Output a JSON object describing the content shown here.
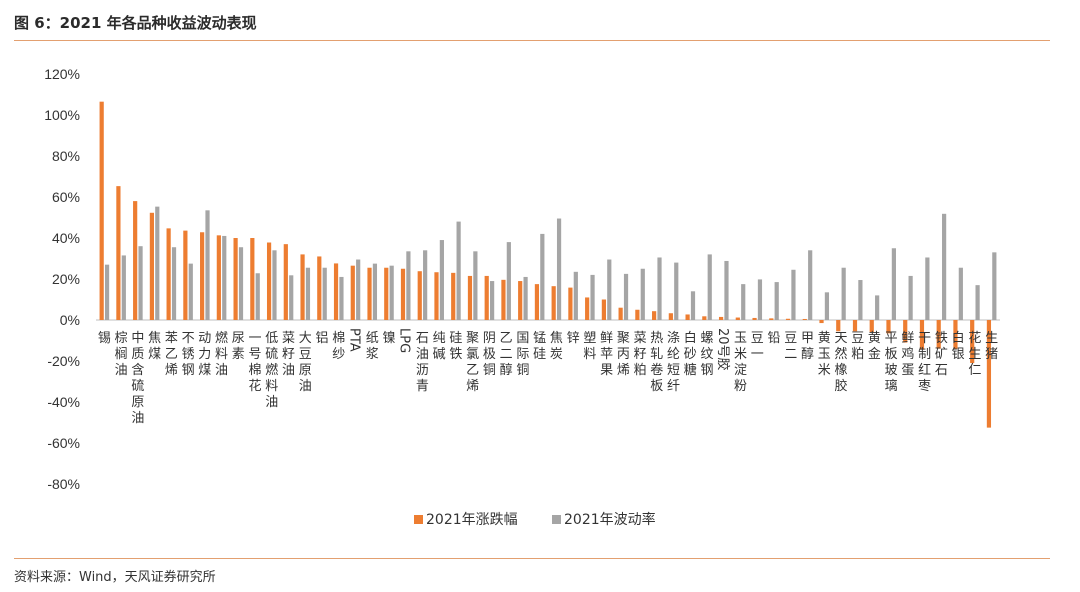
{
  "figure": {
    "title": "图 6：2021 年各品种收益波动表现",
    "source": "资料来源：Wind，天风证券研究所"
  },
  "colors": {
    "change": "#ED7D31",
    "vol": "#A5A5A5",
    "rule": "#E3A070",
    "axis": "#BFBFBF",
    "text": "#333333"
  },
  "chart_data": {
    "type": "bar",
    "title": "",
    "xlabel": "",
    "ylabel": "",
    "ylim": [
      -80,
      120
    ],
    "yticks": [
      "120%",
      "100%",
      "80%",
      "60%",
      "40%",
      "20%",
      "0%",
      "-20%",
      "-40%",
      "-60%",
      "-80%"
    ],
    "grid": false,
    "legend": "bottom",
    "categories": [
      "锡",
      "棕榈油",
      "中质含硫原油",
      "焦煤",
      "苯乙烯",
      "不锈钢",
      "动力煤",
      "燃料油",
      "尿素",
      "一号棉花",
      "低硫燃料油",
      "菜籽油",
      "大豆原油",
      "铝",
      "棉纱",
      "PTA",
      "纸浆",
      "镍",
      "LPG",
      "石油沥青",
      "纯碱",
      "硅铁",
      "聚氯乙烯",
      "阴极铜",
      "乙二醇",
      "国际铜",
      "锰硅",
      "焦炭",
      "锌",
      "塑料",
      "鲜苹果",
      "聚丙烯",
      "菜籽粕",
      "热轧卷板",
      "涤纶短纤",
      "白砂糖",
      "螺纹钢",
      "20号胶",
      "玉米淀粉",
      "豆一",
      "铅",
      "豆二",
      "甲醇",
      "黄玉米",
      "天然橡胶",
      "豆粕",
      "黄金",
      "平板玻璃",
      "鲜鸡蛋",
      "干制红枣",
      "铁矿石",
      "白银",
      "花生仁",
      "生猪"
    ],
    "series": [
      {
        "name": "2021年涨跌幅",
        "values": [
          106.5,
          65.3,
          58.0,
          52.3,
          44.7,
          43.6,
          42.8,
          41.3,
          40.0,
          40.0,
          37.8,
          37.0,
          32.0,
          31.0,
          27.6,
          26.5,
          25.5,
          25.5,
          25.0,
          23.8,
          23.3,
          23.0,
          21.5,
          21.5,
          19.6,
          19.0,
          17.5,
          16.5,
          15.8,
          11.0,
          10.0,
          6.0,
          5.0,
          4.3,
          3.3,
          2.7,
          1.8,
          1.5,
          1.2,
          1.0,
          0.8,
          0.6,
          0.5,
          -1.5,
          -5.5,
          -5.5,
          -6.0,
          -6.5,
          -11.0,
          -14.5,
          -14.0,
          -14.0,
          -21.0,
          -52.5
        ]
      },
      {
        "name": "2021年波动率",
        "values": [
          27.0,
          31.5,
          36.0,
          55.3,
          35.5,
          27.5,
          53.5,
          41.0,
          35.5,
          22.8,
          34.0,
          21.8,
          25.5,
          25.5,
          21.0,
          29.5,
          27.5,
          26.5,
          33.5,
          34.0,
          39.0,
          48.0,
          33.5,
          19.0,
          38.0,
          21.0,
          42.0,
          49.5,
          23.5,
          22.0,
          29.5,
          22.5,
          25.0,
          30.5,
          28.0,
          14.0,
          32.0,
          28.8,
          17.5,
          19.8,
          18.5,
          24.5,
          34.0,
          13.5,
          25.5,
          19.5,
          12.0,
          35.0,
          21.5,
          30.5,
          51.8,
          25.5,
          17.0,
          33.0
        ]
      }
    ]
  }
}
